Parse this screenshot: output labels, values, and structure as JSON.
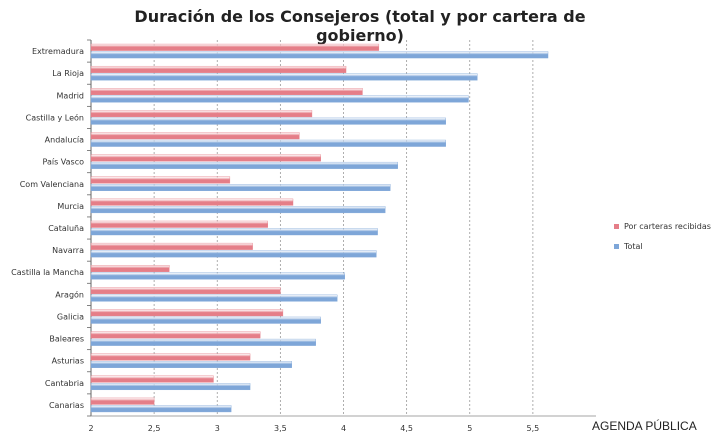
{
  "chart_data": {
    "type": "bar",
    "orientation": "horizontal",
    "title": "Duración de los Consejeros (total y por cartera de gobierno)",
    "categories": [
      "Extremadura",
      "La Rioja",
      "Madrid",
      "Castilla y León",
      "Andalucía",
      "País Vasco",
      "Com Valenciana",
      "Murcia",
      "Cataluña",
      "Navarra",
      "Castilla la Mancha",
      "Aragón",
      "Galicia",
      "Baleares",
      "Asturias",
      "Cantabria",
      "Canarias"
    ],
    "series": [
      {
        "name": "Por carteras recibidas",
        "color": "#e57e88",
        "values": [
          4.28,
          4.02,
          4.15,
          3.75,
          3.65,
          3.82,
          3.1,
          3.6,
          3.4,
          3.28,
          2.62,
          3.5,
          3.52,
          3.34,
          3.26,
          2.97,
          2.5
        ]
      },
      {
        "name": "Total",
        "color": "#7ea6d8",
        "values": [
          5.62,
          5.06,
          4.99,
          4.81,
          4.81,
          4.43,
          4.37,
          4.33,
          4.27,
          4.26,
          4.01,
          3.95,
          3.82,
          3.78,
          3.59,
          3.26,
          3.11
        ]
      }
    ],
    "xlim": [
      2,
      6
    ],
    "xticks": [
      "2",
      "2,5",
      "3",
      "3,5",
      "4",
      "4,5",
      "5",
      "5,5"
    ],
    "xtick_values": [
      2,
      2.5,
      3,
      3.5,
      4,
      4.5,
      5,
      5.5
    ],
    "grid": true,
    "legend_position": "right"
  },
  "source_label": "AGENDA PÚBLICA"
}
